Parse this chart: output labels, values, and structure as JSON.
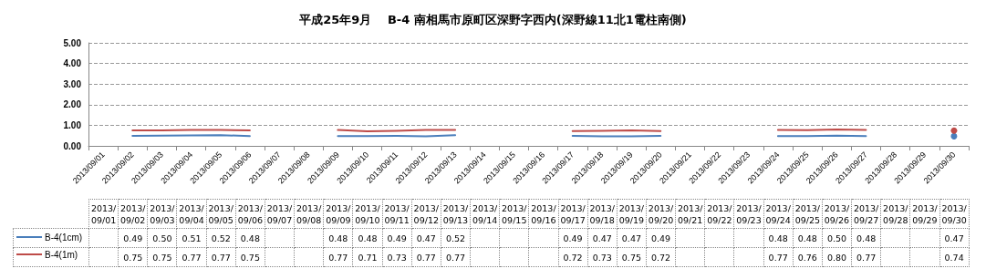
{
  "chart_data": {
    "type": "line",
    "title": "平成25年9月　 B-4 南相馬市原町区深野字西内(深野線11北1電柱南側)",
    "categories": [
      "2013/09/01",
      "2013/09/02",
      "2013/09/03",
      "2013/09/04",
      "2013/09/05",
      "2013/09/06",
      "2013/09/07",
      "2013/09/08",
      "2013/09/09",
      "2013/09/10",
      "2013/09/11",
      "2013/09/12",
      "2013/09/13",
      "2013/09/14",
      "2013/09/15",
      "2013/09/16",
      "2013/09/17",
      "2013/09/18",
      "2013/09/19",
      "2013/09/20",
      "2013/09/21",
      "2013/09/22",
      "2013/09/23",
      "2013/09/24",
      "2013/09/25",
      "2013/09/26",
      "2013/09/27",
      "2013/09/28",
      "2013/09/29",
      "2013/09/30"
    ],
    "series": [
      {
        "name": "B-4(1cm)",
        "color": "#4a7ebb",
        "values": [
          null,
          0.49,
          0.5,
          0.51,
          0.52,
          0.48,
          null,
          null,
          0.48,
          0.48,
          0.49,
          0.47,
          0.52,
          null,
          null,
          null,
          0.49,
          0.47,
          0.47,
          0.49,
          null,
          null,
          null,
          0.48,
          0.48,
          0.5,
          0.48,
          null,
          null,
          0.47
        ],
        "value_labels": [
          null,
          "0.49",
          "0.50",
          "0.51",
          "0.52",
          "0.48",
          null,
          null,
          "0.48",
          "0.48",
          "0.49",
          "0.47",
          "0.52",
          null,
          null,
          null,
          "0.49",
          "0.47",
          "0.47",
          "0.49",
          null,
          null,
          null,
          "0.48",
          "0.48",
          "0.50",
          "0.48",
          null,
          null,
          "0.47"
        ]
      },
      {
        "name": "B-4(1m)",
        "color": "#be4b48",
        "values": [
          null,
          0.75,
          0.75,
          0.77,
          0.77,
          0.75,
          null,
          null,
          0.77,
          0.71,
          0.73,
          0.77,
          0.77,
          null,
          null,
          null,
          0.72,
          0.73,
          0.75,
          0.72,
          null,
          null,
          null,
          0.77,
          0.76,
          0.8,
          0.77,
          null,
          null,
          0.74
        ],
        "value_labels": [
          null,
          "0.75",
          "0.75",
          "0.77",
          "0.77",
          "0.75",
          null,
          null,
          "0.77",
          "0.71",
          "0.73",
          "0.77",
          "0.77",
          null,
          null,
          null,
          "0.72",
          "0.73",
          "0.75",
          "0.72",
          null,
          null,
          null,
          "0.77",
          "0.76",
          "0.80",
          "0.77",
          null,
          null,
          "0.74"
        ]
      }
    ],
    "ylim": [
      0,
      5
    ],
    "yticks": [
      {
        "value": 0,
        "label": "0.00"
      },
      {
        "value": 1,
        "label": "1.00"
      },
      {
        "value": 2,
        "label": "2.00"
      },
      {
        "value": 3,
        "label": "3.00"
      },
      {
        "value": 4,
        "label": "4.00"
      },
      {
        "value": 5,
        "label": "5.00"
      }
    ],
    "grid": "y",
    "legend": "bottom left",
    "marker": "none",
    "line_style": "solid"
  }
}
